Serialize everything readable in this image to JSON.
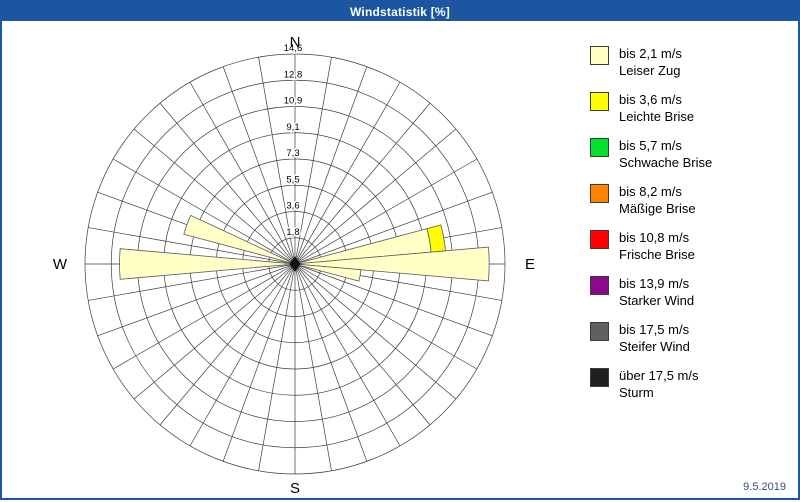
{
  "window": {
    "title": "Windstatistik [%]",
    "date": "9.5.2019"
  },
  "chart_data": {
    "type": "windrose",
    "title": "Windstatistik [%]",
    "unit": "%",
    "max_pct": 14.6,
    "rings": [
      1.8,
      3.6,
      5.5,
      7.3,
      9.1,
      10.9,
      12.8,
      14.6
    ],
    "ring_labels": [
      "1,8",
      "3,6",
      "5,5",
      "7,3",
      "9,1",
      "10,9",
      "12,8",
      "14,6"
    ],
    "sector_count": 36,
    "compass": {
      "n": "N",
      "e": "E",
      "s": "S",
      "w": "W"
    },
    "petals": [
      {
        "direction_deg": 80,
        "segments": [
          {
            "legend": 0,
            "from": 0,
            "to": 9.5
          },
          {
            "legend": 1,
            "from": 9.5,
            "to": 10.5
          }
        ]
      },
      {
        "direction_deg": 90,
        "segments": [
          {
            "legend": 0,
            "from": 0,
            "to": 13.5
          }
        ]
      },
      {
        "direction_deg": 100,
        "segments": [
          {
            "legend": 0,
            "from": 0,
            "to": 4.6
          }
        ]
      },
      {
        "direction_deg": 270,
        "segments": [
          {
            "legend": 0,
            "from": 0,
            "to": 12.2
          }
        ]
      },
      {
        "direction_deg": 290,
        "segments": [
          {
            "legend": 0,
            "from": 0,
            "to": 8.0
          }
        ]
      }
    ],
    "calm_marker": true
  },
  "legend": {
    "items": [
      {
        "color": "#FFFFC6",
        "speed": "bis 2,1 m/s",
        "name": "Leiser Zug"
      },
      {
        "color": "#FFFF00",
        "speed": "bis 3,6 m/s",
        "name": "Leichte Brise"
      },
      {
        "color": "#00E02C",
        "speed": "bis 5,7 m/s",
        "name": "Schwache Brise"
      },
      {
        "color": "#FF8300",
        "speed": "bis 8,2 m/s",
        "name": "Mäßige Brise"
      },
      {
        "color": "#FE0000",
        "speed": "bis 10,8 m/s",
        "name": "Frische Brise"
      },
      {
        "color": "#8B098B",
        "speed": "bis 13,9 m/s",
        "name": "Starker Wind"
      },
      {
        "color": "#606060",
        "speed": "bis 17,5 m/s",
        "name": "Steifer Wind"
      },
      {
        "color": "#1F1F1F",
        "speed": "über 17,5 m/s",
        "name": "Sturm"
      }
    ]
  },
  "colors": {
    "titlebar": "#1C55A0",
    "window_border": "#1C55A0",
    "grid": "#3c3c3c",
    "date_text": "#2F4B8F"
  }
}
